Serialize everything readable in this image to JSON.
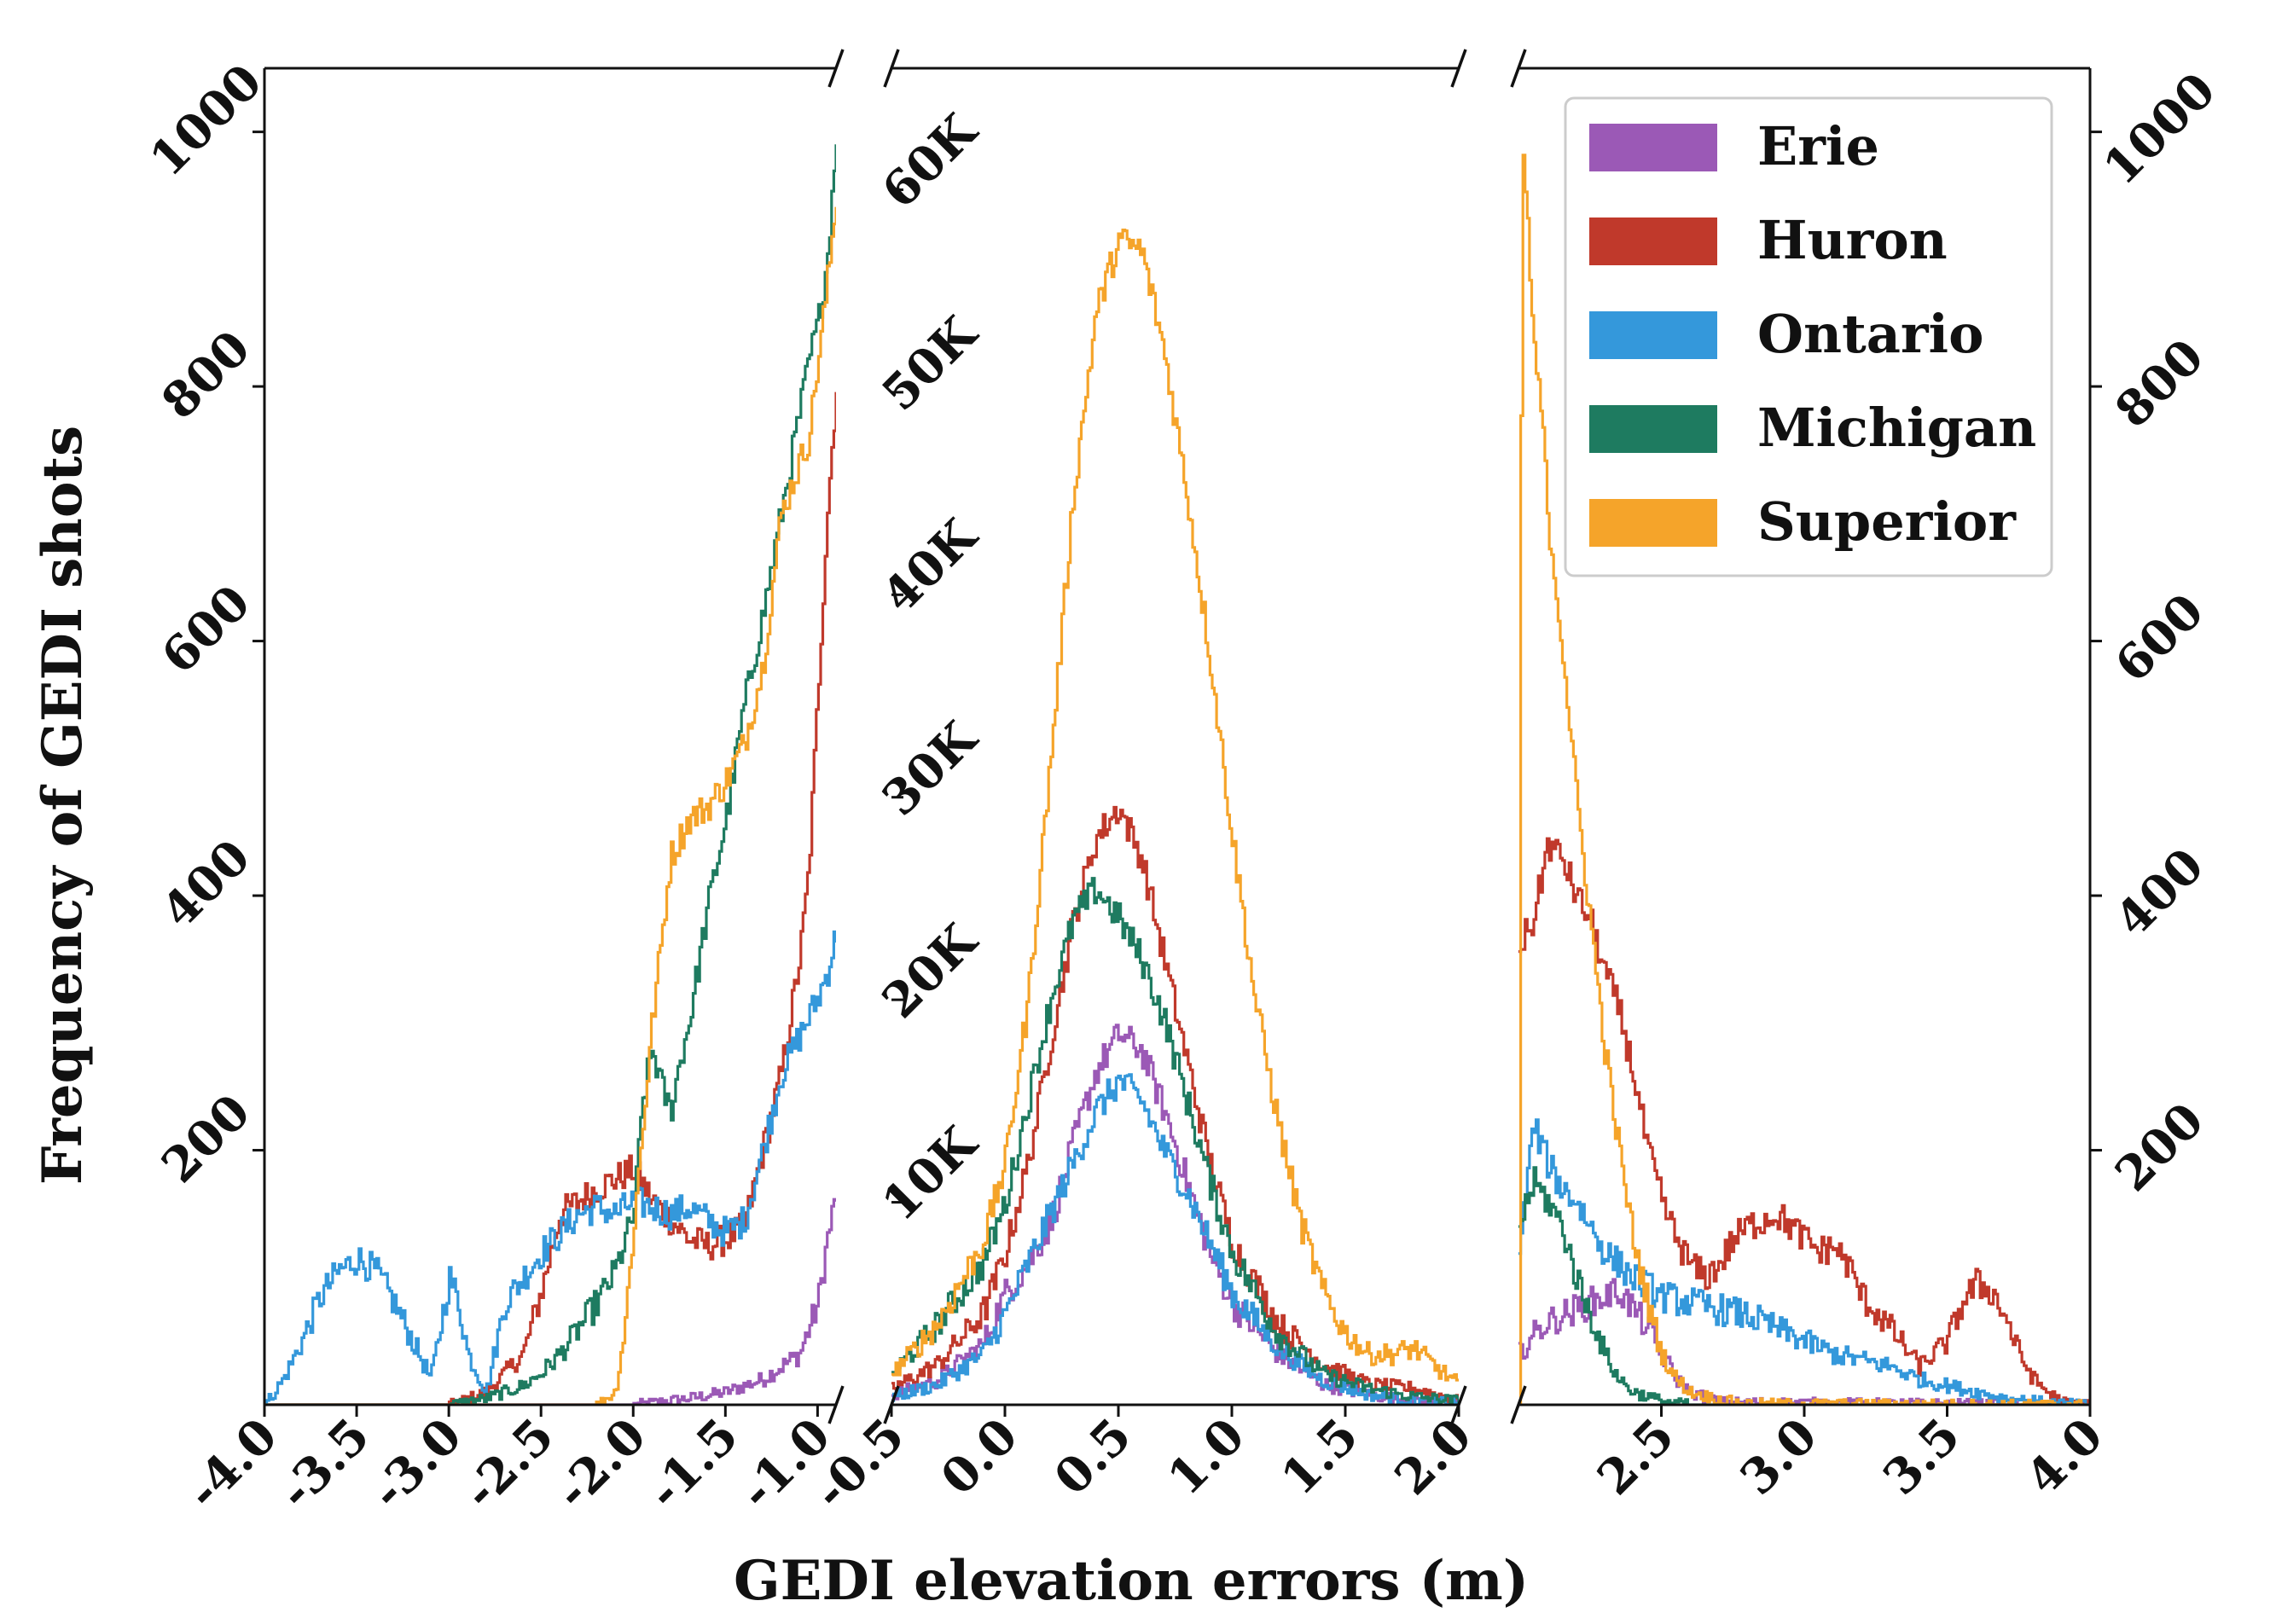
{
  "chart_data": {
    "type": "line",
    "subtype": "step-histogram-broken-x-axis",
    "xlabel": "GEDI elevation errors (m)",
    "ylabel": "Frequency of GEDI shots",
    "legend_position": "top-right",
    "series_colors": {
      "Erie": "#9b59b6",
      "Huron": "#c0392b",
      "Ontario": "#3498db",
      "Michigan": "#1e7b60",
      "Superior": "#f5a42a"
    },
    "legend": [
      "Erie",
      "Huron",
      "Ontario",
      "Michigan",
      "Superior"
    ],
    "panels": [
      {
        "name": "left",
        "xlim": [
          -4.0,
          -0.9
        ],
        "ylim": [
          0,
          1050
        ],
        "x_ticks": [
          -4.0,
          -3.5,
          -3.0,
          -2.5,
          -2.0,
          -1.5,
          -1.0
        ],
        "x_tick_labels": [
          "-4.0",
          "-3.5",
          "-3.0",
          "-2.5",
          "-2.0",
          "-1.5",
          "-1.0"
        ],
        "y_ticks": [
          200,
          400,
          600,
          800,
          1000
        ],
        "y_tick_labels": [
          "200",
          "400",
          "600",
          "800",
          "1000"
        ],
        "y_axis_side": "left",
        "series": [
          {
            "name": "Erie",
            "x": [
              -4.0,
              -2.5,
              -2.0,
              -1.7,
              -1.5,
              -1.3,
              -1.1,
              -1.0,
              -0.95,
              -0.9
            ],
            "y": [
              0,
              0,
              0,
              5,
              10,
              20,
              40,
              80,
              130,
              165
            ]
          },
          {
            "name": "Huron",
            "x": [
              -4.0,
              -3.2,
              -3.0,
              -2.8,
              -2.6,
              -2.5,
              -2.4,
              -2.2,
              -2.0,
              -1.9,
              -1.8,
              -1.7,
              -1.6,
              -1.5,
              -1.4,
              -1.3,
              -1.2,
              -1.1,
              -1.05,
              -1.0,
              -0.95,
              -0.9
            ],
            "y": [
              0,
              0,
              0,
              10,
              40,
              90,
              150,
              170,
              185,
              160,
              145,
              130,
              125,
              130,
              140,
              200,
              260,
              350,
              420,
              560,
              700,
              800
            ]
          },
          {
            "name": "Ontario",
            "x": [
              -4.0,
              -3.9,
              -3.8,
              -3.7,
              -3.6,
              -3.5,
              -3.4,
              -3.3,
              -3.2,
              -3.1,
              -3.05,
              -3.0,
              -2.95,
              -2.9,
              -2.8,
              -2.7,
              -2.6,
              -2.5,
              -2.4,
              -2.3,
              -2.2,
              -2.1,
              -2.0,
              -1.9,
              -1.8,
              -1.7,
              -1.6,
              -1.5,
              -1.4,
              -1.3,
              -1.2,
              -1.1,
              -1.0,
              -0.95,
              -0.9
            ],
            "y": [
              0,
              20,
              50,
              85,
              105,
              115,
              105,
              80,
              50,
              20,
              60,
              100,
              80,
              40,
              10,
              80,
              100,
              120,
              135,
              150,
              155,
              150,
              160,
              155,
              150,
              155,
              145,
              135,
              145,
              200,
              260,
              290,
              320,
              340,
              370
            ]
          },
          {
            "name": "Michigan",
            "x": [
              -4.0,
              -3.0,
              -2.8,
              -2.6,
              -2.5,
              -2.4,
              -2.3,
              -2.2,
              -2.1,
              -2.0,
              -1.95,
              -1.9,
              -1.85,
              -1.8,
              -1.75,
              -1.7,
              -1.6,
              -1.5,
              -1.4,
              -1.3,
              -1.2,
              -1.1,
              -1.05,
              -1.0,
              -0.95,
              -0.9
            ],
            "y": [
              0,
              0,
              5,
              15,
              25,
              40,
              60,
              80,
              105,
              150,
              240,
              280,
              250,
              230,
              270,
              300,
              390,
              460,
              550,
              620,
              700,
              780,
              820,
              850,
              900,
              1000
            ]
          },
          {
            "name": "Superior",
            "x": [
              -4.0,
              -2.2,
              -2.1,
              -2.05,
              -2.0,
              -1.95,
              -1.9,
              -1.8,
              -1.7,
              -1.6,
              -1.5,
              -1.4,
              -1.3,
              -1.2,
              -1.1,
              -1.05,
              -1.0,
              -0.95,
              -0.9
            ],
            "y": [
              0,
              0,
              10,
              60,
              140,
              220,
              300,
              430,
              460,
              470,
              490,
              520,
              580,
              700,
              740,
              760,
              820,
              880,
              950
            ]
          }
        ]
      },
      {
        "name": "middle",
        "xlim": [
          -0.5,
          2.0
        ],
        "ylim": [
          0,
          66000
        ],
        "x_ticks": [
          -0.5,
          0.0,
          0.5,
          1.0,
          1.5,
          2.0
        ],
        "x_tick_labels": [
          "-0.5",
          "0.0",
          "0.5",
          "1.0",
          "1.5",
          "2.0"
        ],
        "y_ticks": [
          10000,
          20000,
          30000,
          40000,
          50000,
          60000
        ],
        "y_tick_labels": [
          "10K",
          "20K",
          "30K",
          "40K",
          "50K",
          "60K"
        ],
        "y_axis_side": "inside-left",
        "series": [
          {
            "name": "Erie",
            "x": [
              -0.5,
              -0.3,
              -0.1,
              0.0,
              0.1,
              0.2,
              0.3,
              0.4,
              0.5,
              0.6,
              0.7,
              0.8,
              0.9,
              1.0,
              1.2,
              1.4,
              1.6,
              1.8,
              2.0
            ],
            "y": [
              500,
              1200,
              3000,
              5500,
              7000,
              9000,
              13000,
              16500,
              18300,
              17500,
              14500,
              11000,
              7500,
              5000,
              2500,
              1000,
              500,
              200,
              100
            ]
          },
          {
            "name": "Huron",
            "x": [
              -0.5,
              -0.3,
              -0.1,
              0.0,
              0.1,
              0.2,
              0.3,
              0.4,
              0.5,
              0.6,
              0.7,
              0.8,
              0.9,
              1.0,
              1.2,
              1.4,
              1.6,
              1.8,
              2.0
            ],
            "y": [
              800,
              2000,
              4500,
              7500,
              12000,
              18000,
              24000,
              28000,
              29500,
              27000,
              22000,
              17000,
              12000,
              8000,
              4000,
              2000,
              1000,
              800,
              200
            ]
          },
          {
            "name": "Ontario",
            "x": [
              -0.5,
              -0.3,
              -0.1,
              0.0,
              0.1,
              0.2,
              0.3,
              0.4,
              0.5,
              0.6,
              0.7,
              0.8,
              0.9,
              1.0,
              1.2,
              1.4,
              1.6,
              1.8,
              2.0
            ],
            "y": [
              400,
              1000,
              2500,
              4500,
              7000,
              9500,
              12000,
              14500,
              16000,
              15000,
              12500,
              10500,
              8000,
              5500,
              2800,
              1200,
              500,
              200,
              100
            ]
          },
          {
            "name": "Michigan",
            "x": [
              -0.5,
              -0.3,
              -0.1,
              0.0,
              0.1,
              0.2,
              0.3,
              0.4,
              0.5,
              0.6,
              0.7,
              0.8,
              0.9,
              1.0,
              1.2,
              1.4,
              1.6,
              1.8,
              2.0
            ],
            "y": [
              1500,
              4000,
              7000,
              10000,
              15000,
              20000,
              24000,
              25500,
              24000,
              22000,
              19000,
              15000,
              11000,
              7500,
              3500,
              1500,
              800,
              400,
              200
            ]
          },
          {
            "name": "Superior",
            "x": [
              -0.5,
              -0.3,
              -0.1,
              0.0,
              0.1,
              0.2,
              0.3,
              0.4,
              0.5,
              0.6,
              0.7,
              0.8,
              0.9,
              1.0,
              1.1,
              1.2,
              1.3,
              1.4,
              1.5,
              1.6,
              1.7,
              1.8,
              1.9,
              2.0
            ],
            "y": [
              1500,
              4000,
              8000,
              12000,
              20000,
              32000,
              45000,
              54000,
              57500,
              57000,
              52000,
              45000,
              37000,
              28000,
              20000,
              14000,
              9000,
              5500,
              3500,
              2500,
              2500,
              2800,
              1800,
              1000
            ]
          }
        ]
      },
      {
        "name": "right",
        "xlim": [
          2.0,
          4.0
        ],
        "ylim": [
          0,
          1050
        ],
        "x_ticks": [
          2.5,
          3.0,
          3.5,
          4.0
        ],
        "x_tick_labels": [
          "2.5",
          "3.0",
          "3.5",
          "4.0"
        ],
        "y_ticks": [
          200,
          400,
          600,
          800,
          1000
        ],
        "y_tick_labels": [
          "200",
          "400",
          "600",
          "800",
          "1000"
        ],
        "y_axis_side": "right",
        "series": [
          {
            "name": "Erie",
            "x": [
              2.0,
              2.05,
              2.1,
              2.15,
              2.2,
              2.25,
              2.3,
              2.35,
              2.4,
              2.45,
              2.5,
              2.55,
              2.6,
              2.7,
              4.0
            ],
            "y": [
              40,
              55,
              65,
              70,
              75,
              80,
              85,
              90,
              75,
              60,
              40,
              20,
              10,
              2,
              0
            ]
          },
          {
            "name": "Huron",
            "x": [
              2.0,
              2.05,
              2.1,
              2.15,
              2.2,
              2.25,
              2.3,
              2.35,
              2.4,
              2.45,
              2.5,
              2.55,
              2.6,
              2.65,
              2.7,
              2.75,
              2.8,
              2.85,
              2.9,
              3.0,
              3.05,
              3.1,
              3.15,
              3.2,
              3.3,
              3.35,
              3.4,
              3.5,
              3.55,
              3.6,
              3.65,
              3.7,
              3.75,
              3.8,
              3.85,
              3.9,
              4.0
            ],
            "y": [
              360,
              380,
              440,
              430,
              400,
              380,
              340,
              310,
              260,
              200,
              160,
              130,
              110,
              100,
              110,
              130,
              140,
              145,
              150,
              130,
              120,
              125,
              110,
              85,
              60,
              45,
              30,
              50,
              80,
              95,
              90,
              70,
              40,
              20,
              10,
              2,
              0
            ]
          },
          {
            "name": "Ontario",
            "x": [
              2.0,
              2.05,
              2.1,
              2.15,
              2.2,
              2.3,
              2.4,
              2.5,
              2.6,
              2.7,
              2.8,
              2.9,
              3.0,
              3.1,
              3.2,
              3.3,
              3.4,
              3.5,
              3.6,
              3.7,
              3.8,
              3.9,
              4.0
            ],
            "y": [
              120,
              220,
              190,
              170,
              160,
              120,
              100,
              85,
              80,
              75,
              70,
              60,
              50,
              40,
              35,
              30,
              20,
              15,
              10,
              5,
              3,
              1,
              0
            ]
          },
          {
            "name": "Michigan",
            "x": [
              2.0,
              2.05,
              2.1,
              2.15,
              2.2,
              2.25,
              2.3,
              2.35,
              2.4,
              2.5,
              2.6,
              4.0
            ],
            "y": [
              140,
              175,
              160,
              140,
              100,
              70,
              40,
              20,
              10,
              3,
              0,
              0
            ]
          },
          {
            "name": "Superior",
            "x": [
              2.0,
              2.01,
              2.03,
              2.05,
              2.08,
              2.1,
              2.15,
              2.2,
              2.25,
              2.3,
              2.35,
              2.4,
              2.45,
              2.5,
              2.55,
              2.6,
              2.7,
              2.8,
              4.0
            ],
            "y": [
              0,
              1000,
              930,
              830,
              780,
              700,
              600,
              480,
              380,
              280,
              200,
              130,
              80,
              40,
              20,
              10,
              4,
              1,
              0
            ]
          }
        ]
      }
    ]
  }
}
